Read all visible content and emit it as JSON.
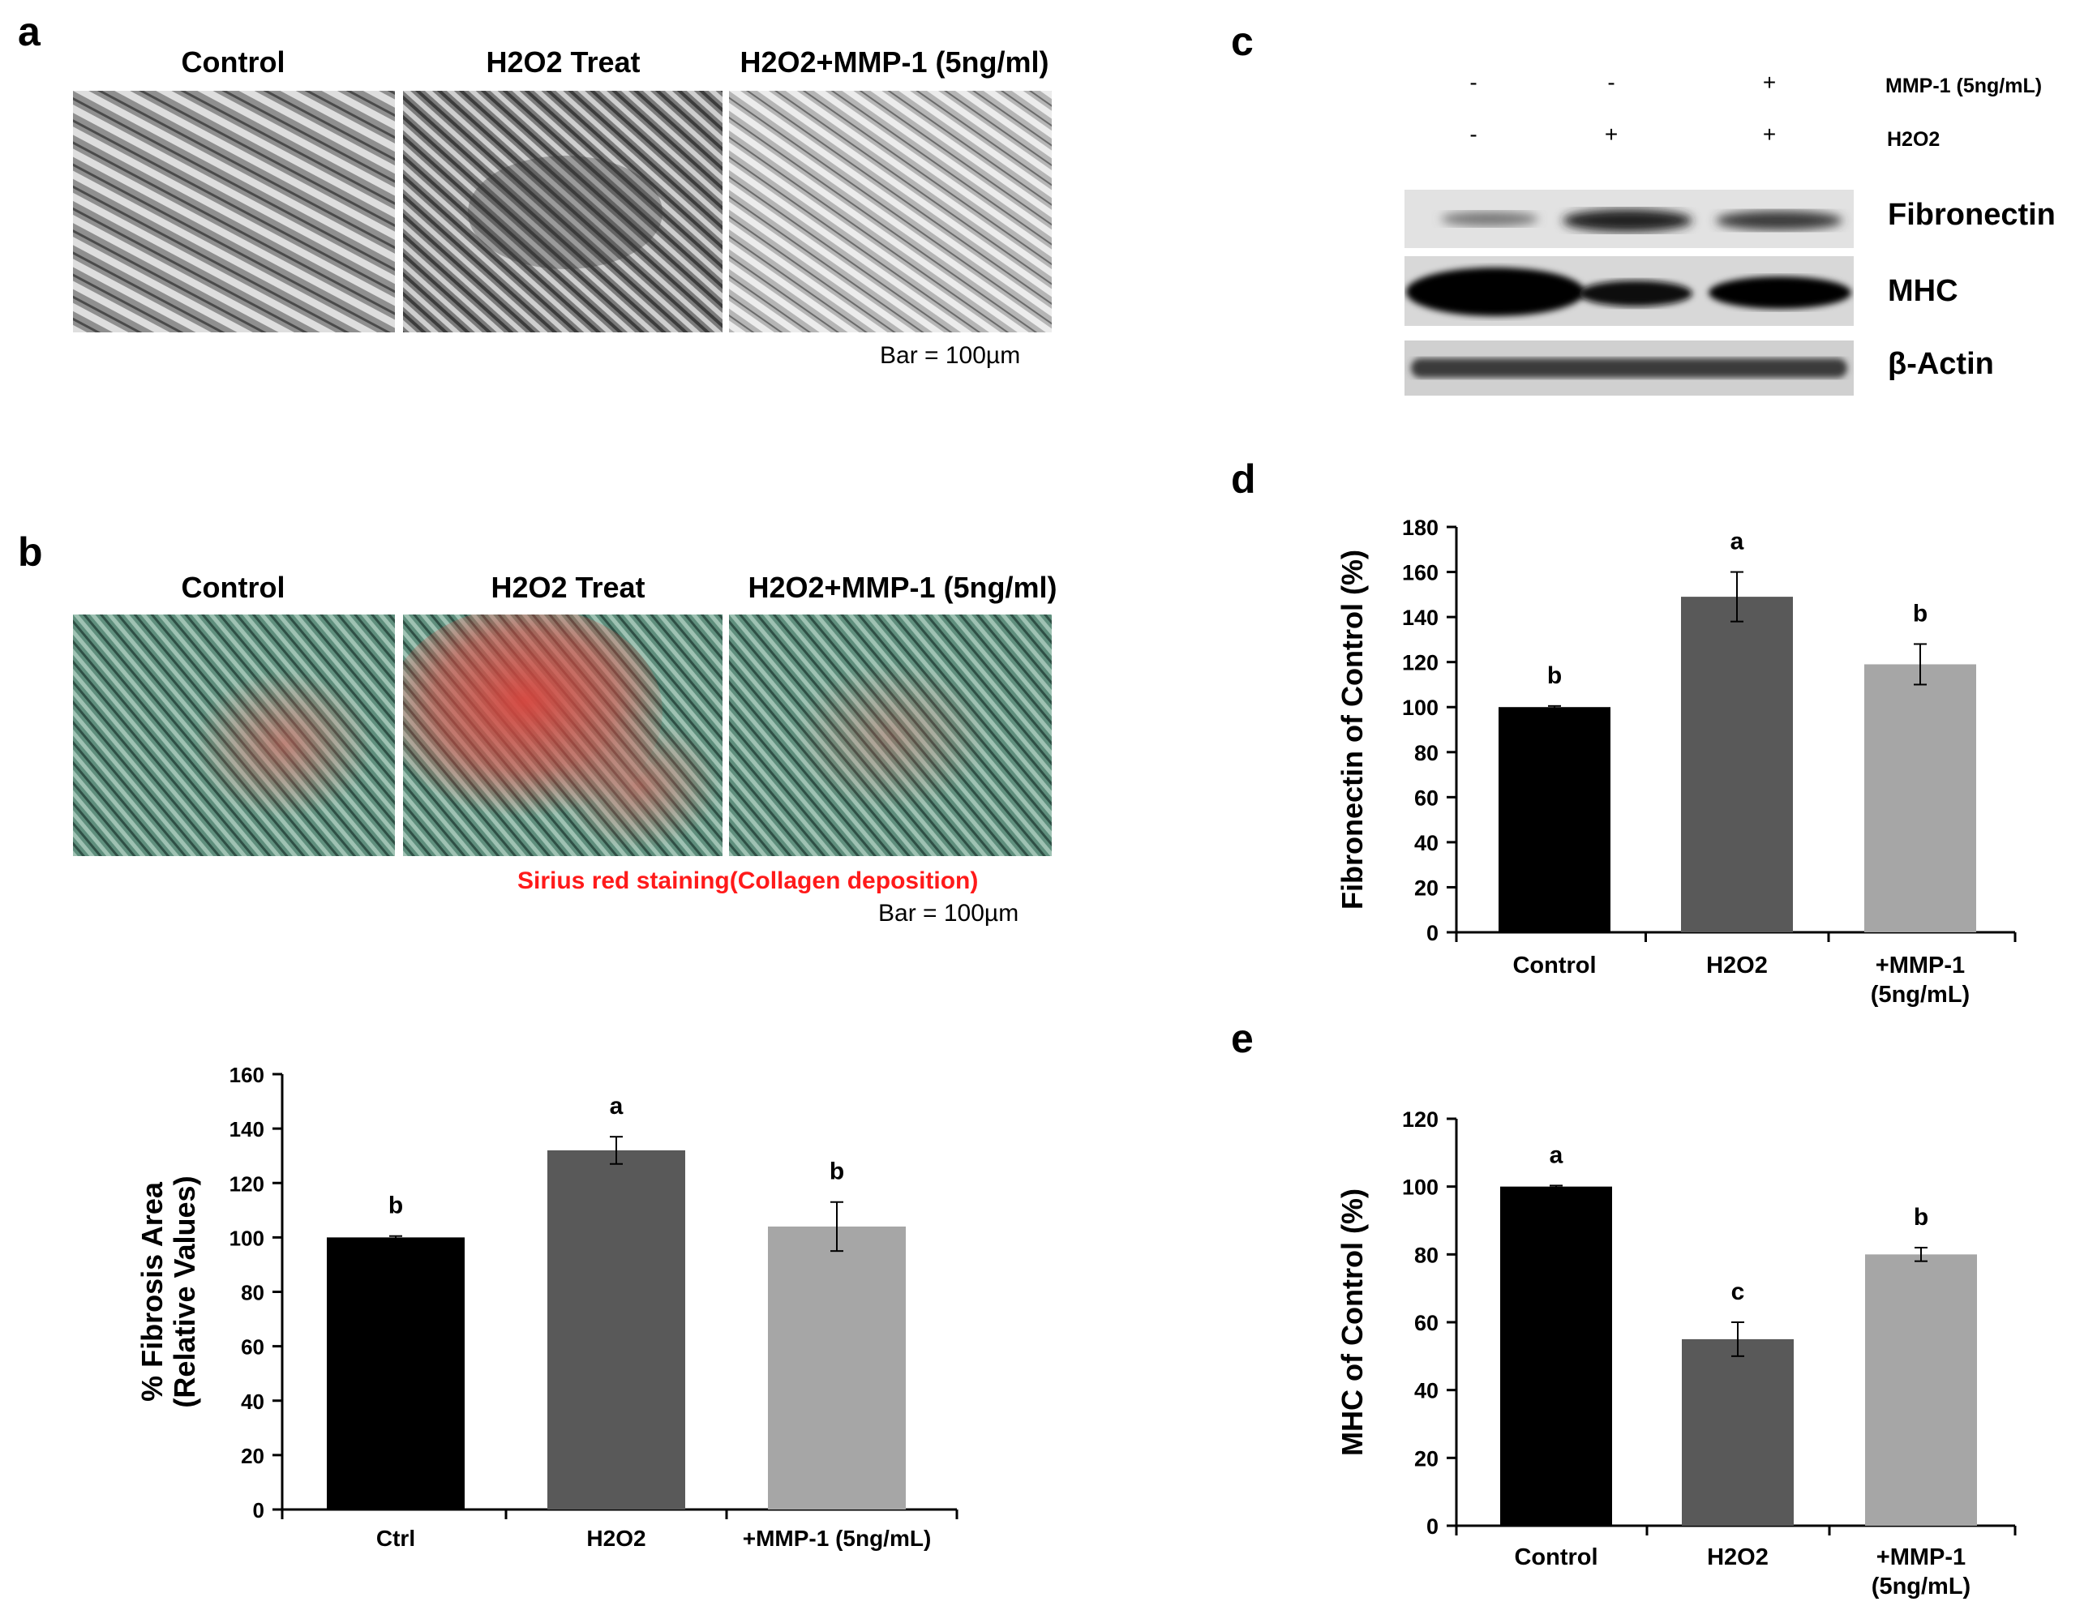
{
  "panels": {
    "a": {
      "letter": "a",
      "titles": [
        "Control",
        "H2O2 Treat",
        "H2O2+MMP-1 (5ng/ml)"
      ],
      "scale_bar": "Bar = 100µm"
    },
    "b": {
      "letter": "b",
      "titles": [
        "Control",
        "H2O2 Treat",
        "H2O2+MMP-1 (5ng/ml)"
      ],
      "stain_note": "Sirius red staining(Collagen deposition)",
      "stain_color": "#ff1a1a",
      "scale_bar": "Bar = 100µm"
    },
    "c": {
      "letter": "c",
      "conditions": [
        {
          "name": "MMP-1 (5ng/mL)",
          "signs": [
            "-",
            "-",
            "+"
          ]
        },
        {
          "name": "H2O2",
          "signs": [
            "-",
            "+",
            "+"
          ]
        }
      ],
      "bands": [
        "Fibronectin",
        "MHC",
        "β-Actin"
      ]
    },
    "d": {
      "letter": "d"
    },
    "e": {
      "letter": "e"
    }
  },
  "colors": {
    "control_bar": "#000000",
    "h2o2_bar": "#595959",
    "mmp1_bar": "#a6a6a6",
    "a_tile_gray": "#9a9a9a",
    "b_tile_green": "#5b8a7a",
    "b_tile_red": "#c9554f"
  },
  "chart_data": [
    {
      "id": "b-fibrosis",
      "type": "bar",
      "categories": [
        "Ctrl",
        "H2O2",
        "+MMP-1 (5ng/mL)"
      ],
      "values": [
        100,
        132,
        104
      ],
      "errors": [
        0.5,
        5,
        9
      ],
      "significance": [
        "b",
        "a",
        "b"
      ],
      "ylabel": [
        "% Fibrosis Area",
        "(Relative Values)"
      ],
      "ylim": [
        0,
        160
      ],
      "yticks": [
        0,
        20,
        40,
        60,
        80,
        100,
        120,
        140,
        160
      ],
      "grid": false
    },
    {
      "id": "d-fibronectin",
      "type": "bar",
      "categories": [
        "Control",
        "H2O2",
        "+MMP-1|(5ng/mL)"
      ],
      "values": [
        100,
        149,
        119
      ],
      "errors": [
        0.5,
        11,
        9
      ],
      "significance": [
        "b",
        "a",
        "b"
      ],
      "ylabel": [
        "Fibronectin of Control (%)"
      ],
      "ylim": [
        0,
        180
      ],
      "yticks": [
        0,
        20,
        40,
        60,
        80,
        100,
        120,
        140,
        160,
        180
      ],
      "grid": false
    },
    {
      "id": "e-mhc",
      "type": "bar",
      "categories": [
        "Control",
        "H2O2",
        "+MMP-1|(5ng/mL)"
      ],
      "values": [
        100,
        55,
        80
      ],
      "errors": [
        0.3,
        5,
        2
      ],
      "significance": [
        "a",
        "c",
        "b"
      ],
      "ylabel": [
        "MHC of Control (%)"
      ],
      "ylim": [
        0,
        120
      ],
      "yticks": [
        0,
        20,
        40,
        60,
        80,
        100,
        120
      ],
      "grid": false
    }
  ]
}
